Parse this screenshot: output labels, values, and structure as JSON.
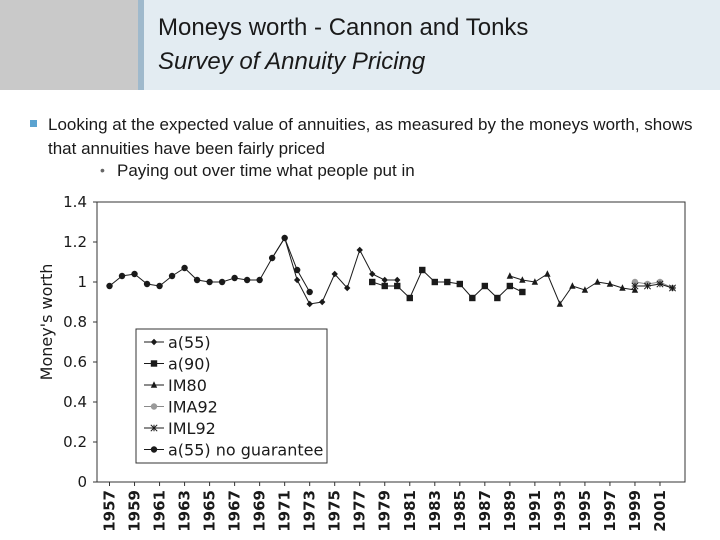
{
  "slide": {
    "title": "Moneys worth - Cannon and Tonks",
    "subtitle": "Survey of Annuity Pricing",
    "bullet": "Looking at the expected value of annuities, as measured by the moneys worth, shows that annuities have been fairly priced",
    "sub_bullet": "Paying out over time what people put in",
    "colors": {
      "header_bg": "#e3ecf2",
      "left_panel": "#c9c9c9",
      "bullet_accent": "#5ba3d0"
    }
  },
  "chart_data": {
    "type": "line",
    "ylabel": "Money's worth",
    "ylim": [
      0,
      1.4
    ],
    "yticks": [
      "0",
      "0.2",
      "0.4",
      "0.6",
      "0.8",
      "1",
      "1.2",
      "1.4"
    ],
    "xlim": [
      1956,
      2003
    ],
    "xticks": [
      "1957",
      "1959",
      "1961",
      "1963",
      "1965",
      "1967",
      "1969",
      "1971",
      "1973",
      "1975",
      "1977",
      "1979",
      "1981",
      "1983",
      "1985",
      "1987",
      "1989",
      "1991",
      "1993",
      "1995",
      "1997",
      "1999",
      "2001"
    ],
    "legend_position": "lower-left",
    "grid": false,
    "series": [
      {
        "name": "a(55)",
        "marker": "diamond",
        "color": "#1a1a1a",
        "x": [
          1970,
          1971,
          1972,
          1973,
          1974,
          1975,
          1976,
          1977,
          1978,
          1979,
          1980
        ],
        "y": [
          1.12,
          1.22,
          1.01,
          0.89,
          0.9,
          1.04,
          0.97,
          1.16,
          1.04,
          1.01,
          1.01
        ]
      },
      {
        "name": "a(90)",
        "marker": "square",
        "color": "#1a1a1a",
        "x": [
          1978,
          1979,
          1980,
          1981,
          1982,
          1983,
          1984,
          1985,
          1986,
          1987,
          1988,
          1989,
          1990
        ],
        "y": [
          1.0,
          0.98,
          0.98,
          0.92,
          1.06,
          1.0,
          1.0,
          0.99,
          0.92,
          0.98,
          0.92,
          0.98,
          0.95
        ]
      },
      {
        "name": "IM80",
        "marker": "triangle",
        "color": "#1a1a1a",
        "x": [
          1989,
          1990,
          1991,
          1992,
          1993,
          1994,
          1995,
          1996,
          1997,
          1998,
          1999
        ],
        "y": [
          1.03,
          1.01,
          1.0,
          1.04,
          0.89,
          0.98,
          0.96,
          1.0,
          0.99,
          0.97,
          0.96
        ]
      },
      {
        "name": "IMA92",
        "marker": "circle-gray",
        "color": "#8a8a8a",
        "x": [
          1999,
          2000,
          2001,
          2002
        ],
        "y": [
          1.0,
          0.99,
          1.0,
          0.97
        ]
      },
      {
        "name": "IML92",
        "marker": "star",
        "color": "#1a1a1a",
        "x": [
          1999,
          2000,
          2001,
          2002
        ],
        "y": [
          0.98,
          0.98,
          0.99,
          0.97
        ]
      },
      {
        "name": "a(55) no guarantee",
        "marker": "circle",
        "color": "#1a1a1a",
        "x": [
          1957,
          1958,
          1959,
          1960,
          1961,
          1962,
          1963,
          1964,
          1965,
          1966,
          1967,
          1968,
          1969,
          1970,
          1971,
          1972,
          1973
        ],
        "y": [
          0.98,
          1.03,
          1.04,
          0.99,
          0.98,
          1.03,
          1.07,
          1.01,
          1.0,
          1.0,
          1.02,
          1.01,
          1.01,
          1.12,
          1.22,
          1.06,
          0.95
        ]
      }
    ]
  }
}
